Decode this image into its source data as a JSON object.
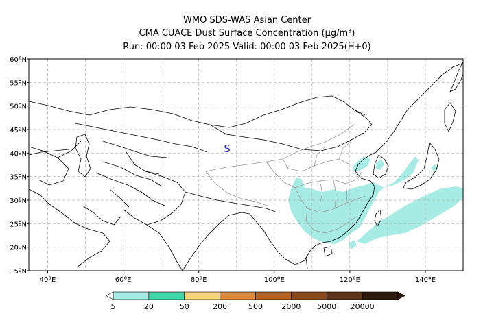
{
  "header": {
    "line1": "WMO SDS-WAS Asian Center",
    "line2": "CMA CUACE Dust Surface Concentration (μg/m³)",
    "line3": "Run: 00:00 03 Feb 2025    Valid: 00:00 03 Feb 2025(H+0)"
  },
  "map": {
    "lon_range": [
      35,
      150
    ],
    "lat_range": [
      15,
      60
    ],
    "lat_ticks": [
      "15ºN",
      "20ºN",
      "25ºN",
      "30ºN",
      "35ºN",
      "40ºN",
      "45ºN",
      "50ºN",
      "55ºN",
      "60ºN"
    ],
    "lon_ticks": [
      "40ºE",
      "60ºE",
      "80ºE",
      "100ºE",
      "120ºE",
      "140ºE"
    ],
    "marker": {
      "text": "S",
      "lon": 87.5,
      "lat": 40.2,
      "color": "#3030c0"
    },
    "dust_color": "#a6ece4"
  },
  "colorbar": {
    "labels": [
      "5",
      "20",
      "50",
      "200",
      "500",
      "2000",
      "5000",
      "20000"
    ],
    "colors": [
      "#a6ece4",
      "#3fd8a8",
      "#f7d77a",
      "#e08a3c",
      "#b5611f",
      "#8a4c1e",
      "#5c3417",
      "#2e1a0c"
    ]
  }
}
